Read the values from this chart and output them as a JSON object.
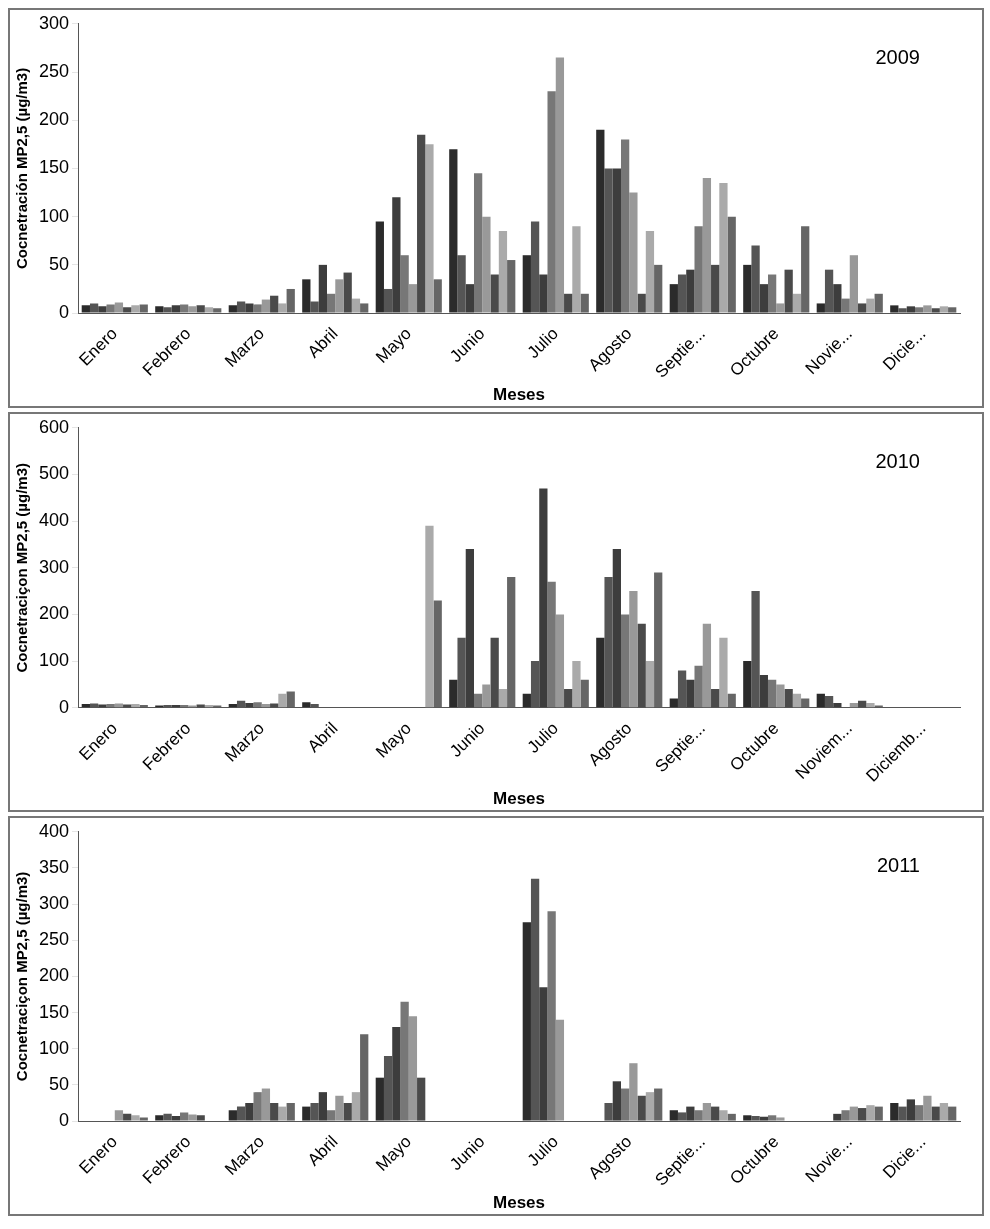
{
  "chart_data": [
    {
      "type": "bar",
      "ylabel": "Cocnetración MP2,5 (µg/m3)",
      "xlabel": "Meses",
      "annotations": [
        "2009"
      ],
      "categories": [
        "Enero",
        "Febrero",
        "Marzo",
        "Abril",
        "Mayo",
        "Junio",
        "Julio",
        "Agosto",
        "Septie...",
        "Octubre",
        "Novie...",
        "Dicie..."
      ],
      "ylim": [
        0,
        300
      ],
      "yticks": [
        0,
        50,
        100,
        150,
        200,
        250,
        300
      ],
      "grid": false,
      "legend": false,
      "series": [
        {
          "color": "#2b2b2b",
          "values": [
            8,
            7,
            8,
            35,
            95,
            170,
            60,
            190,
            30,
            50,
            10,
            8
          ]
        },
        {
          "color": "#555555",
          "values": [
            10,
            6,
            12,
            12,
            25,
            60,
            95,
            150,
            40,
            70,
            45,
            5
          ]
        },
        {
          "color": "#3d3d3d",
          "values": [
            7,
            8,
            10,
            50,
            120,
            30,
            40,
            150,
            45,
            30,
            30,
            7
          ]
        },
        {
          "color": "#777777",
          "values": [
            9,
            9,
            9,
            20,
            60,
            145,
            230,
            180,
            90,
            40,
            15,
            6
          ]
        },
        {
          "color": "#999999",
          "values": [
            11,
            7,
            14,
            35,
            30,
            100,
            265,
            125,
            140,
            10,
            60,
            8
          ]
        },
        {
          "color": "#4a4a4a",
          "values": [
            6,
            8,
            18,
            42,
            185,
            40,
            20,
            20,
            50,
            45,
            10,
            5
          ]
        },
        {
          "color": "#aaaaaa",
          "values": [
            8,
            6,
            10,
            15,
            175,
            85,
            90,
            85,
            135,
            20,
            15,
            7
          ]
        },
        {
          "color": "#666666",
          "values": [
            9,
            5,
            25,
            10,
            35,
            55,
            20,
            50,
            100,
            90,
            20,
            6
          ]
        }
      ]
    },
    {
      "type": "bar",
      "ylabel": "Cocnetraciçon MP2,5 (µg/m3)",
      "xlabel": "Meses",
      "annotations": [
        "2010"
      ],
      "categories": [
        "Enero",
        "Febrero",
        "Marzo",
        "Abril",
        "Mayo",
        "Junio",
        "Julio",
        "Agosto",
        "Septie...",
        "Octubre",
        "Noviem...",
        "Diciemb..."
      ],
      "ylim": [
        0,
        600
      ],
      "yticks": [
        0,
        100,
        200,
        300,
        400,
        500,
        600
      ],
      "grid": false,
      "legend": false,
      "series": [
        {
          "color": "#2b2b2b",
          "values": [
            8,
            5,
            8,
            12,
            0,
            60,
            30,
            150,
            20,
            100,
            30,
            0
          ]
        },
        {
          "color": "#555555",
          "values": [
            9,
            6,
            15,
            8,
            0,
            150,
            100,
            280,
            80,
            250,
            25,
            0
          ]
        },
        {
          "color": "#3d3d3d",
          "values": [
            7,
            6,
            10,
            0,
            0,
            340,
            470,
            340,
            60,
            70,
            10,
            0
          ]
        },
        {
          "color": "#777777",
          "values": [
            8,
            6,
            12,
            0,
            0,
            30,
            270,
            200,
            90,
            60,
            0,
            0
          ]
        },
        {
          "color": "#999999",
          "values": [
            9,
            5,
            8,
            0,
            0,
            50,
            200,
            250,
            180,
            50,
            10,
            0
          ]
        },
        {
          "color": "#4a4a4a",
          "values": [
            7,
            7,
            9,
            0,
            0,
            150,
            40,
            180,
            40,
            40,
            15,
            0
          ]
        },
        {
          "color": "#aaaaaa",
          "values": [
            8,
            6,
            30,
            0,
            390,
            40,
            100,
            100,
            150,
            30,
            10,
            0
          ]
        },
        {
          "color": "#666666",
          "values": [
            6,
            5,
            35,
            0,
            230,
            280,
            60,
            290,
            30,
            20,
            5,
            0
          ]
        }
      ]
    },
    {
      "type": "bar",
      "ylabel": "Cocnetraciçon MP2,5 (µg/m3)",
      "xlabel": "Meses",
      "annotations": [
        "2011"
      ],
      "categories": [
        "Enero",
        "Febrero",
        "Marzo",
        "Abril",
        "Mayo",
        "Junio",
        "Julio",
        "Agosto",
        "Septie...",
        "Octubre",
        "Novie...",
        "Dicie..."
      ],
      "ylim": [
        0,
        400
      ],
      "yticks": [
        0,
        50,
        100,
        150,
        200,
        250,
        300,
        350,
        400
      ],
      "grid": false,
      "legend": false,
      "series": [
        {
          "color": "#2b2b2b",
          "values": [
            0,
            8,
            15,
            20,
            60,
            0,
            275,
            0,
            15,
            8,
            0,
            25
          ]
        },
        {
          "color": "#555555",
          "values": [
            0,
            10,
            20,
            25,
            90,
            0,
            335,
            25,
            12,
            7,
            0,
            20
          ]
        },
        {
          "color": "#3d3d3d",
          "values": [
            0,
            7,
            25,
            40,
            130,
            0,
            185,
            55,
            20,
            6,
            10,
            30
          ]
        },
        {
          "color": "#777777",
          "values": [
            0,
            12,
            40,
            15,
            165,
            0,
            290,
            45,
            15,
            8,
            15,
            22
          ]
        },
        {
          "color": "#999999",
          "values": [
            15,
            9,
            45,
            35,
            145,
            0,
            140,
            80,
            25,
            5,
            20,
            35
          ]
        },
        {
          "color": "#4a4a4a",
          "values": [
            10,
            8,
            25,
            25,
            60,
            0,
            0,
            35,
            20,
            0,
            18,
            20
          ]
        },
        {
          "color": "#aaaaaa",
          "values": [
            8,
            0,
            20,
            40,
            0,
            0,
            0,
            40,
            15,
            0,
            22,
            25
          ]
        },
        {
          "color": "#666666",
          "values": [
            5,
            0,
            25,
            120,
            0,
            0,
            0,
            45,
            10,
            0,
            20,
            20
          ]
        }
      ]
    }
  ]
}
